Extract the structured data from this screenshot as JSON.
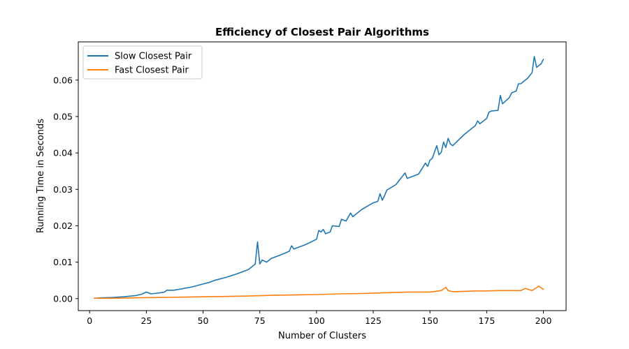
{
  "chart_data": {
    "type": "line",
    "title": "Efficiency of Closest Pair Algorithms",
    "xlabel": "Number of Clusters",
    "ylabel": "Running Time in Seconds",
    "xlim": [
      -5,
      210
    ],
    "ylim": [
      -0.0033,
      0.0705
    ],
    "xticks": [
      0,
      25,
      50,
      75,
      100,
      125,
      150,
      175,
      200
    ],
    "xtick_labels": [
      "0",
      "25",
      "50",
      "75",
      "100",
      "125",
      "150",
      "175",
      "200"
    ],
    "yticks": [
      0.0,
      0.01,
      0.02,
      0.03,
      0.04,
      0.05,
      0.06
    ],
    "ytick_labels": [
      "0.00",
      "0.01",
      "0.02",
      "0.03",
      "0.04",
      "0.05",
      "0.06"
    ],
    "grid": false,
    "legend_position": "top-left",
    "colors": {
      "slow": "#1f77b4",
      "fast": "#ff7f0e"
    },
    "series": [
      {
        "name": "Slow Closest Pair",
        "x": [
          2,
          5,
          10,
          15,
          20,
          23,
          25,
          27,
          30,
          33,
          34,
          37,
          40,
          45,
          50,
          53,
          55,
          60,
          65,
          70,
          73,
          74,
          75,
          76,
          78,
          80,
          85,
          88,
          89,
          90,
          95,
          100,
          101,
          102,
          103,
          104,
          106,
          107,
          110,
          111,
          113,
          115,
          116,
          120,
          125,
          127,
          128,
          129,
          130,
          131,
          135,
          139,
          140,
          145,
          148,
          149,
          150,
          151,
          153,
          154,
          155,
          156,
          157,
          158,
          159,
          160,
          165,
          170,
          171,
          172,
          175,
          176,
          177,
          180,
          181,
          182,
          185,
          186,
          188,
          189,
          190,
          193,
          195,
          196,
          197,
          199,
          200
        ],
        "y": [
          0.0001,
          0.0002,
          0.0003,
          0.0005,
          0.0008,
          0.0012,
          0.0018,
          0.0013,
          0.0015,
          0.0018,
          0.0023,
          0.0023,
          0.0026,
          0.0032,
          0.004,
          0.0045,
          0.005,
          0.0058,
          0.0068,
          0.008,
          0.0095,
          0.0156,
          0.0095,
          0.0106,
          0.01,
          0.011,
          0.0122,
          0.013,
          0.0145,
          0.0136,
          0.0148,
          0.0163,
          0.0187,
          0.0183,
          0.019,
          0.0178,
          0.0183,
          0.02,
          0.0198,
          0.0218,
          0.0213,
          0.0235,
          0.0225,
          0.0245,
          0.0263,
          0.0267,
          0.0288,
          0.027,
          0.0283,
          0.0298,
          0.0313,
          0.0345,
          0.033,
          0.0342,
          0.0372,
          0.0363,
          0.038,
          0.0385,
          0.042,
          0.0395,
          0.0402,
          0.043,
          0.0415,
          0.044,
          0.0425,
          0.042,
          0.045,
          0.0475,
          0.0488,
          0.048,
          0.0495,
          0.0512,
          0.0515,
          0.0517,
          0.0558,
          0.0535,
          0.0552,
          0.0565,
          0.057,
          0.059,
          0.059,
          0.0605,
          0.062,
          0.0665,
          0.0635,
          0.0645,
          0.0657
        ]
      },
      {
        "name": "Fast Closest Pair",
        "x": [
          2,
          10,
          20,
          30,
          40,
          50,
          60,
          70,
          80,
          90,
          100,
          110,
          120,
          130,
          140,
          150,
          155,
          157,
          158,
          160,
          165,
          170,
          175,
          180,
          185,
          190,
          192,
          195,
          198,
          200
        ],
        "y": [
          0.0001,
          0.0001,
          0.0002,
          0.0003,
          0.0004,
          0.0005,
          0.0006,
          0.0007,
          0.0009,
          0.001,
          0.0011,
          0.0013,
          0.0014,
          0.0016,
          0.0018,
          0.0018,
          0.0022,
          0.0031,
          0.0022,
          0.0019,
          0.002,
          0.0021,
          0.0021,
          0.0022,
          0.0022,
          0.0022,
          0.0028,
          0.0022,
          0.0034,
          0.0025
        ]
      }
    ]
  }
}
